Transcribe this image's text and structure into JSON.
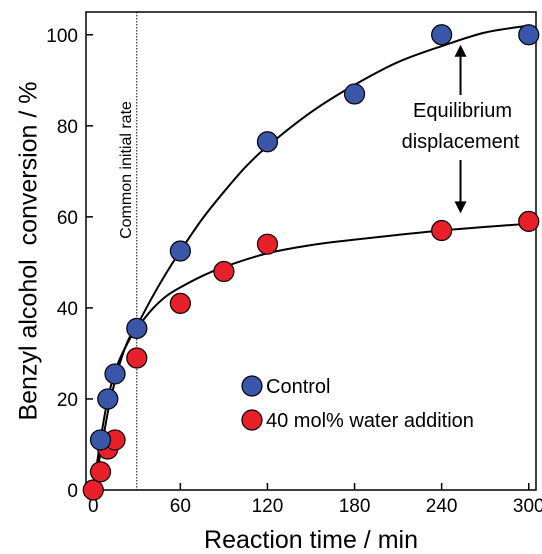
{
  "chart_data": {
    "type": "scatter",
    "xlabel": "Reaction time / min",
    "ylabel": "Benzyl alcohol  conversion / %",
    "xlim": [
      -5,
      305
    ],
    "ylim": [
      0,
      105
    ],
    "xticks": [
      0,
      60,
      120,
      180,
      240,
      300
    ],
    "yticks": [
      0,
      20,
      40,
      60,
      80,
      100
    ],
    "series": [
      {
        "name": "Control",
        "color": "#3a56a8",
        "x": [
          5,
          10,
          15,
          30,
          60,
          120,
          180,
          240,
          300
        ],
        "y": [
          11,
          20,
          25.5,
          35.5,
          52.5,
          76.5,
          87,
          100,
          100
        ],
        "fit": {
          "x": [
            0,
            5,
            10,
            15,
            20,
            30,
            40,
            50,
            60,
            75,
            90,
            105,
            120,
            150,
            180,
            210,
            240,
            270,
            300
          ],
          "y": [
            0,
            11,
            20,
            26,
            30,
            36,
            42,
            47.5,
            52.5,
            59.5,
            65.5,
            71,
            75.5,
            83,
            89,
            94,
            97.5,
            100.5,
            102
          ]
        }
      },
      {
        "name": "40 mol% water addition",
        "color": "#e8202a",
        "x": [
          0,
          5,
          10,
          15,
          30,
          60,
          90,
          120,
          240,
          300
        ],
        "y": [
          0,
          4,
          9,
          11,
          29,
          41,
          48,
          54,
          57,
          59
        ],
        "fit": {
          "x": [
            0,
            5,
            10,
            15,
            20,
            25,
            30,
            40,
            50,
            60,
            75,
            90,
            120,
            150,
            180,
            240,
            300
          ],
          "y": [
            0,
            8,
            17,
            24,
            29.5,
            33.5,
            35.5,
            39.5,
            42.5,
            44.5,
            47,
            49,
            52,
            53.8,
            55,
            57,
            58.5
          ]
        }
      }
    ],
    "vline": {
      "x": 30,
      "label": "Common initial rate"
    },
    "annotation": {
      "text_line1": "Equilibrium",
      "text_line2": "displacement",
      "x": 253,
      "y_top": 100,
      "y_bottom": 59
    },
    "legend": {
      "position": "bottom-right"
    },
    "grid": false
  }
}
